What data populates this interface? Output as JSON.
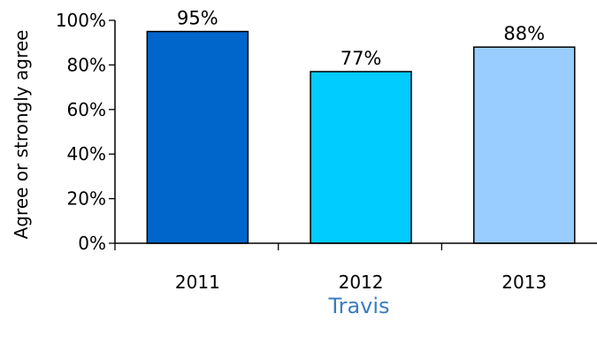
{
  "chart_data": {
    "type": "bar",
    "categories": [
      "2011",
      "2012",
      "2013"
    ],
    "values": [
      95,
      77,
      88
    ],
    "data_labels": [
      "95%",
      "77%",
      "88%"
    ],
    "colors": [
      "#0066cc",
      "#00ccff",
      "#99ccff"
    ],
    "ylabel": "Agree or strongly agree",
    "xlabel": "Travis",
    "xlabel_color": "#3a7dbf",
    "ylim": [
      0,
      100
    ],
    "yticks": [
      0,
      20,
      40,
      60,
      80,
      100
    ],
    "ytick_labels": [
      "0%",
      "20%",
      "40%",
      "60%",
      "80%",
      "100%"
    ],
    "grid": false,
    "legend": "none"
  }
}
